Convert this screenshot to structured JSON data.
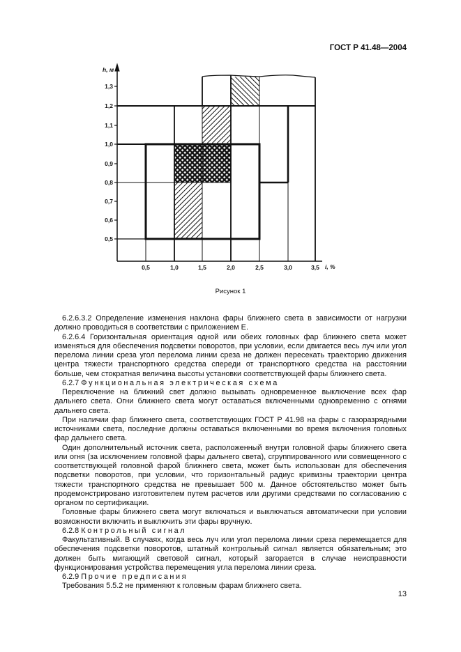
{
  "header": {
    "doc_id": "ГОСТ Р 41.48—2004"
  },
  "figure": {
    "y_axis_label": "h, м",
    "x_axis_label": "i, %",
    "y_ticks": [
      "0,5",
      "0,6",
      "0,7",
      "0,8",
      "0,9",
      "1,0",
      "1,1",
      "1,2",
      "1,3"
    ],
    "x_ticks": [
      "0,5",
      "1,0",
      "1,5",
      "2,0",
      "2,5",
      "3,0",
      "3,5"
    ],
    "caption": "Рисунок 1"
  },
  "body": {
    "p1": "6.2.6.3.2  Определение изменения наклона фары ближнего света в зависимости от нагрузки должно проводиться в соответствии с приложением Е.",
    "p2": "6.2.6.4  Горизонтальная ориентация одной или обеих головных фар ближнего света может изменяться для обеспечения подсветки поворотов, при условии, если двигается весь луч или угол перелома линии среза угол перелома линии среза не должен пересекать траекторию движения центра тяжести транспортного средства спереди от транспортного средства на расстоянии больше, чем стократная величина высоты установки соответствующей фары ближнего света.",
    "h627_num": "6.2.7",
    "h627": "Функциональная электрическая схема",
    "p3": "Переключение на ближний свет должно вызывать одновременное выключение всех фар дальнего света. Огни ближнего света могут оставаться включенными одновременно с огнями дальнего света.",
    "p4": "При наличии фар ближнего света, соответствующих ГОСТ Р 41.98 на фары с газоразрядными источниками света, последние должны оставаться включенными во время включения головных фар дальнего света.",
    "p5": "Один дополнительный источник света, расположенный внутри головной фары ближнего света или огня (за исключением головной фары дальнего света), сгруппированного или совмещенного с соответствующей головной фарой ближнего света, может быть использован для обеспечения подсветки поворотов, при условии, что горизонтальный радиус кривизны траектории центра тяжести транспортного средства не превышает 500 м. Данное обстоятельство может быть продемонстрировано изготовителем путем расчетов или другими средствами по согласованию с органом по сертификации.",
    "p6": "Головные фары ближнего света могут включаться и выключаться автоматически при условии возможности включить и выключить эти фары вручную.",
    "h628_num": "6.2.8",
    "h628": "Контрольный сигнал",
    "p7": "Факультативный. В случаях, когда весь луч или угол перелома линии среза перемещается для обеспечения подсветки поворотов, штатный контрольный сигнал является обязательным; это должен быть мигающий световой сигнал, который загорается в случае неисправности функционирования устройства перемещения угла перелома линии среза.",
    "h629_num": "6.2.9",
    "h629": "Прочие предписания",
    "p8": "Требования 5.5.2 не применяют к головным фарам ближнего света."
  },
  "footer": {
    "page_number": "13"
  }
}
